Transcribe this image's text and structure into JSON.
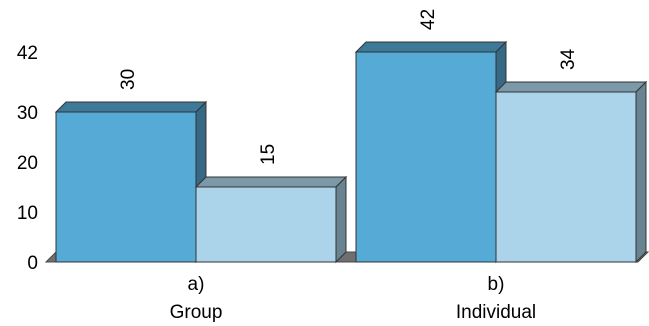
{
  "chart_data": {
    "type": "bar",
    "style": "3d-clustered",
    "categories": [
      {
        "line1": "a)",
        "line2": "Group"
      },
      {
        "line1": "b)",
        "line2": "Individual"
      }
    ],
    "series": [
      {
        "values": [
          30,
          42
        ],
        "color": "#55aad6"
      },
      {
        "values": [
          15,
          34
        ],
        "color": "#abd4ea"
      }
    ],
    "yticks": [
      "0",
      "10",
      "20",
      "30",
      "42"
    ],
    "ylim": [
      0,
      42
    ],
    "grid": false,
    "legend": "none"
  }
}
